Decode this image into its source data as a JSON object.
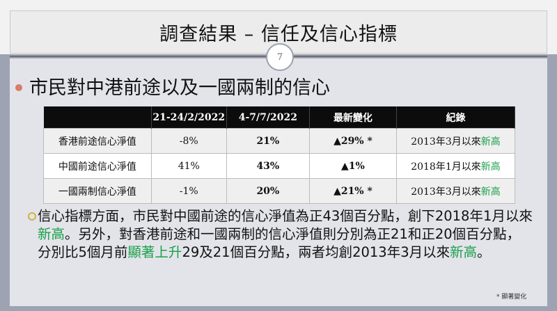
{
  "title": "調查結果 – 信任及信心指標",
  "page_number": "7",
  "heading": "市民對中港前途以及一國兩制的信心",
  "table": {
    "headers": [
      "",
      "21-24/2/2022",
      "4-7/7/2022",
      "最新變化",
      "紀錄"
    ],
    "rows": [
      {
        "label": "香港前途信心淨值",
        "a": "-8%",
        "b": "21%",
        "change": "▲29% *",
        "record_prefix": "2013年3月以來",
        "record_hl": "新高"
      },
      {
        "label": "中國前途信心淨值",
        "a": "41%",
        "b": "43%",
        "change": "▲1%",
        "record_prefix": "2018年1月以來",
        "record_hl": "新高"
      },
      {
        "label": "一國兩制信心淨值",
        "a": "-1%",
        "b": "20%",
        "change": "▲21% *",
        "record_prefix": "2013年3月以來",
        "record_hl": "新高"
      }
    ]
  },
  "paragraph": {
    "p1": "信心指標方面，市民對中國前途的信心淨值為正43個百分點，創下2018年1月以來",
    "hl1": "新高",
    "p2": "。另外，對香港前途和一國兩制的信心淨值則分別為正21和正20個百分點，分別比5個月前",
    "hl2": "顯著上升",
    "p3": "29及21個百分點，兩者均創2013年3月以來",
    "hl3": "新高",
    "p4": "。"
  },
  "footnote": "* 顯著變化",
  "colors": {
    "accent_green": "#1ba04a",
    "bullet_red": "#d97c6b",
    "bullet_gold": "#d2b244",
    "frame": "#9ea3b4"
  }
}
